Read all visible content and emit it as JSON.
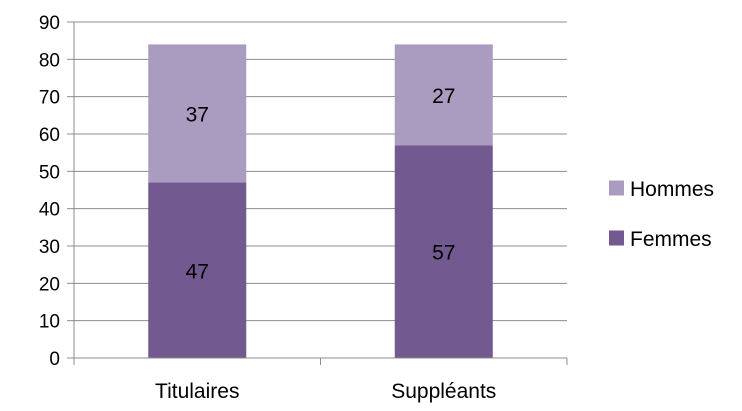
{
  "chart_data": {
    "type": "bar",
    "stacked": true,
    "categories": [
      "Titulaires",
      "Suppléants"
    ],
    "series": [
      {
        "name": "Femmes",
        "values": [
          47,
          57
        ],
        "color": "#725990"
      },
      {
        "name": "Hommes",
        "values": [
          37,
          27
        ],
        "color": "#AA9CC0"
      }
    ],
    "title": "",
    "xlabel": "",
    "ylabel": "",
    "ylim": [
      0,
      90
    ],
    "yticks": [
      0,
      10,
      20,
      30,
      40,
      50,
      60,
      70,
      80,
      90
    ],
    "grid": true,
    "legend_position": "right",
    "legend_order": [
      "Hommes",
      "Femmes"
    ],
    "gridline_color": "#8C8C8C",
    "axis_color": "#8C8C8C"
  }
}
